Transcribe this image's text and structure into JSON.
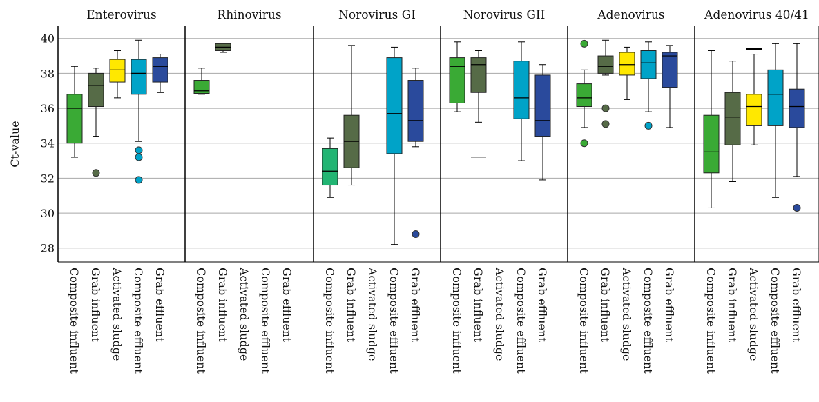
{
  "chart_data": {
    "type": "boxplot",
    "ylabel": "Ct-value",
    "ylim": [
      27.2,
      40.7
    ],
    "yticks": [
      28,
      30,
      32,
      34,
      36,
      38,
      40
    ],
    "grid": "horizontal",
    "categories": [
      "Composite influent",
      "Grab influent",
      "Activated sludge",
      "Composite effluent",
      "Grab effluent"
    ],
    "colors": [
      "#3aaa35",
      "#566b47",
      "#ffe800",
      "#00a3c8",
      "#2a4a9c"
    ],
    "panels": [
      {
        "title": "Enterovirus",
        "boxes": [
          {
            "category": "Composite influent",
            "min": 33.2,
            "q1": 34.0,
            "median": 36.0,
            "q3": 36.8,
            "max": 38.4,
            "outliers": []
          },
          {
            "category": "Grab influent",
            "min": 34.4,
            "q1": 36.1,
            "median": 37.3,
            "q3": 38.0,
            "max": 38.3,
            "outliers": [
              32.3
            ]
          },
          {
            "category": "Activated sludge",
            "min": 36.6,
            "q1": 37.5,
            "median": 38.2,
            "q3": 38.8,
            "max": 39.3,
            "outliers": []
          },
          {
            "category": "Composite effluent",
            "min": 34.1,
            "q1": 36.8,
            "median": 38.0,
            "q3": 38.8,
            "max": 39.9,
            "outliers": [
              33.6,
              33.2,
              31.9
            ]
          },
          {
            "category": "Grab effluent",
            "min": 36.9,
            "q1": 37.5,
            "median": 38.4,
            "q3": 38.9,
            "max": 39.1,
            "outliers": []
          }
        ]
      },
      {
        "title": "Rhinovirus",
        "boxes": [
          {
            "category": "Composite influent",
            "min": 36.8,
            "q1": 36.85,
            "median": 37.0,
            "q3": 37.6,
            "max": 38.3,
            "outliers": []
          },
          {
            "category": "Grab influent",
            "min": 39.2,
            "q1": 39.3,
            "median": 39.5,
            "q3": 39.7,
            "max": 39.7,
            "outliers": []
          }
        ]
      },
      {
        "title": "Norovirus GI",
        "boxes": [
          {
            "category": "Composite influent",
            "min": 30.9,
            "q1": 31.6,
            "median": 32.4,
            "q3": 33.7,
            "max": 34.3,
            "outliers": [],
            "color": "#22b573"
          },
          {
            "category": "Grab influent",
            "min": 31.6,
            "q1": 32.6,
            "median": 34.1,
            "q3": 35.6,
            "max": 39.6,
            "outliers": []
          },
          {
            "category": "Composite effluent",
            "min": 28.2,
            "q1": 33.4,
            "median": 35.7,
            "q3": 38.9,
            "max": 39.5,
            "outliers": []
          },
          {
            "category": "Grab effluent",
            "min": 33.8,
            "q1": 34.1,
            "median": 35.3,
            "q3": 37.6,
            "max": 38.3,
            "outliers": [
              28.8
            ]
          }
        ]
      },
      {
        "title": "Norovirus GII",
        "boxes": [
          {
            "category": "Composite influent",
            "min": 35.8,
            "q1": 36.3,
            "median": 38.4,
            "q3": 38.9,
            "max": 39.8,
            "outliers": []
          },
          {
            "category": "Grab influent",
            "min": 35.2,
            "q1": 36.9,
            "median": 38.5,
            "q3": 38.9,
            "max": 39.3,
            "outliers": [],
            "extra_line": 33.2
          },
          {
            "category": "Composite effluent",
            "min": 33.0,
            "q1": 35.4,
            "median": 36.6,
            "q3": 38.7,
            "max": 39.8,
            "outliers": []
          },
          {
            "category": "Grab effluent",
            "min": 31.9,
            "q1": 34.4,
            "median": 35.3,
            "q3": 37.9,
            "max": 38.5,
            "outliers": []
          }
        ]
      },
      {
        "title": "Adenovirus",
        "boxes": [
          {
            "category": "Composite influent",
            "min": 34.9,
            "q1": 36.1,
            "median": 36.6,
            "q3": 37.4,
            "max": 38.2,
            "outliers": [
              39.7,
              34.0
            ]
          },
          {
            "category": "Grab influent",
            "min": 37.9,
            "q1": 38.0,
            "median": 38.4,
            "q3": 39.0,
            "max": 39.9,
            "outliers": [
              36.0,
              35.1
            ]
          },
          {
            "category": "Activated sludge",
            "min": 36.5,
            "q1": 37.9,
            "median": 38.5,
            "q3": 39.2,
            "max": 39.5,
            "outliers": []
          },
          {
            "category": "Composite effluent",
            "min": 35.8,
            "q1": 37.7,
            "median": 38.6,
            "q3": 39.3,
            "max": 39.8,
            "outliers": [
              35.0
            ]
          },
          {
            "category": "Grab effluent",
            "min": 34.9,
            "q1": 37.2,
            "median": 39.0,
            "q3": 39.2,
            "max": 39.6,
            "outliers": []
          }
        ]
      },
      {
        "title": "Adenovirus 40/41",
        "boxes": [
          {
            "category": "Composite influent",
            "min": 30.3,
            "q1": 32.3,
            "median": 33.5,
            "q3": 35.6,
            "max": 39.3,
            "outliers": []
          },
          {
            "category": "Grab influent",
            "min": 31.8,
            "q1": 33.9,
            "median": 35.5,
            "q3": 36.9,
            "max": 38.7,
            "outliers": []
          },
          {
            "category": "Activated sludge",
            "min": 33.9,
            "q1": 35.0,
            "median": 36.1,
            "q3": 36.8,
            "max": 39.1,
            "outliers": [],
            "extra_line": 39.4
          },
          {
            "category": "Composite effluent",
            "min": 30.9,
            "q1": 35.0,
            "median": 36.8,
            "q3": 38.2,
            "max": 39.7,
            "outliers": []
          },
          {
            "category": "Grab effluent",
            "min": 32.1,
            "q1": 34.9,
            "median": 36.1,
            "q3": 37.1,
            "max": 39.7,
            "outliers": [
              30.3
            ]
          }
        ]
      }
    ]
  }
}
